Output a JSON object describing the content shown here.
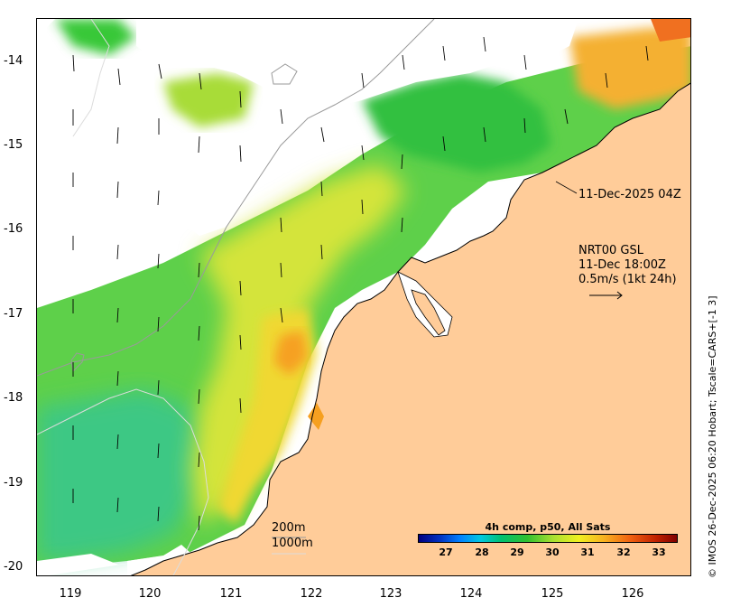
{
  "axes": {
    "y_ticks": [
      "-14",
      "-15",
      "-16",
      "-17",
      "-18",
      "-19",
      "-20"
    ],
    "x_ticks": [
      "119",
      "120",
      "121",
      "122",
      "123",
      "124",
      "125",
      "126"
    ]
  },
  "annotations": {
    "image_time": "11-Dec-2025 04Z",
    "product": "NRT00 GSL",
    "current_time": "11-Dec 18:00Z",
    "scale": "0.5m/s (1kt 24h)"
  },
  "legend": {
    "depth_200": "200m",
    "depth_1000": "1000m",
    "colorbar_title": "4h comp, p50, All Sats",
    "colorbar_ticks": [
      "27",
      "28",
      "29",
      "30",
      "31",
      "32",
      "33"
    ],
    "colorbar_range": [
      26.2,
      33.8
    ]
  },
  "credit": "© IMOS 26-Dec-2025 06:20 Hobart; Tscale=CARS+[-1 3]",
  "colors": {
    "land": "#FFCC99",
    "ocean_nodata": "#FFFFFF"
  }
}
